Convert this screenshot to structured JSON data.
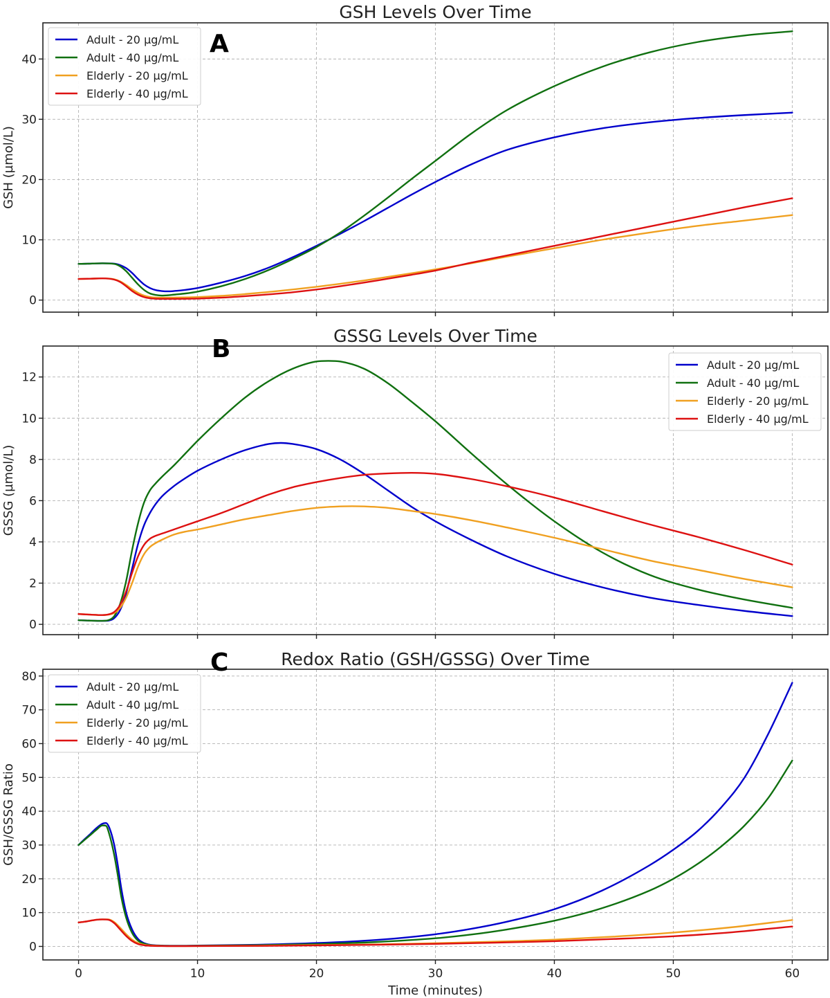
{
  "chart_data": [
    {
      "type": "line",
      "panel_label": "A",
      "title": "GSH Levels Over Time",
      "xlabel": "",
      "ylabel": "GSH (µmol/L)",
      "xlim": [
        -3,
        63
      ],
      "ylim": [
        -2,
        46
      ],
      "xticks": [
        0,
        10,
        20,
        30,
        40,
        50,
        60
      ],
      "yticks": [
        0,
        10,
        20,
        30,
        40
      ],
      "show_xtick_labels": false,
      "grid": true,
      "legend": "top-left",
      "series": [
        {
          "name": "Adult - 20 µg/mL",
          "color": "#0000cc",
          "x": [
            0,
            1,
            2,
            3,
            3.5,
            4,
            4.5,
            5,
            5.5,
            6,
            6.5,
            7,
            7.5,
            8,
            9,
            10,
            12,
            14,
            16,
            18,
            20,
            22,
            24,
            26,
            28,
            30,
            33,
            36,
            40,
            44,
            48,
            52,
            56,
            60
          ],
          "y": [
            6,
            6.05,
            6.1,
            6.05,
            5.8,
            5.3,
            4.5,
            3.5,
            2.6,
            2.0,
            1.65,
            1.5,
            1.45,
            1.5,
            1.7,
            2.0,
            2.9,
            4.0,
            5.4,
            7.1,
            9.0,
            11.0,
            13.1,
            15.3,
            17.5,
            19.6,
            22.5,
            24.9,
            27.0,
            28.5,
            29.5,
            30.2,
            30.7,
            31.1
          ]
        },
        {
          "name": "Adult - 40 µg/mL",
          "color": "#107010",
          "x": [
            0,
            1,
            2,
            3,
            3.5,
            4,
            4.5,
            5,
            5.5,
            6,
            6.5,
            7,
            7.5,
            8,
            9,
            10,
            12,
            14,
            16,
            18,
            20,
            22,
            24,
            26,
            28,
            30,
            33,
            36,
            40,
            44,
            48,
            52,
            56,
            60
          ],
          "y": [
            6,
            6.05,
            6.1,
            6.0,
            5.6,
            4.8,
            3.7,
            2.6,
            1.7,
            1.1,
            0.85,
            0.75,
            0.8,
            0.9,
            1.1,
            1.4,
            2.3,
            3.5,
            5.0,
            6.8,
            8.8,
            11.2,
            14.0,
            17.0,
            20.1,
            23.1,
            27.6,
            31.5,
            35.5,
            38.7,
            41.1,
            42.8,
            43.9,
            44.6
          ]
        },
        {
          "name": "Elderly - 20 µg/mL",
          "color": "#f0a020",
          "x": [
            0,
            1,
            2,
            3,
            3.5,
            4,
            4.5,
            5,
            5.5,
            6,
            6.5,
            7,
            8,
            10,
            12,
            14,
            16,
            18,
            20,
            22,
            24,
            26,
            28,
            30,
            33,
            36,
            40,
            44,
            48,
            52,
            56,
            60
          ],
          "y": [
            3.5,
            3.55,
            3.6,
            3.45,
            3.1,
            2.5,
            1.8,
            1.2,
            0.75,
            0.5,
            0.42,
            0.4,
            0.42,
            0.5,
            0.7,
            1.0,
            1.35,
            1.75,
            2.2,
            2.7,
            3.25,
            3.85,
            4.45,
            5.1,
            6.1,
            7.2,
            8.6,
            10.0,
            11.2,
            12.3,
            13.2,
            14.1
          ]
        },
        {
          "name": "Elderly - 40 µg/mL",
          "color": "#dd1111",
          "x": [
            0,
            1,
            2,
            3,
            3.5,
            4,
            4.5,
            5,
            5.5,
            6,
            6.5,
            7,
            8,
            10,
            12,
            14,
            16,
            18,
            20,
            22,
            24,
            26,
            28,
            30,
            33,
            36,
            40,
            44,
            48,
            52,
            56,
            60
          ],
          "y": [
            3.5,
            3.55,
            3.6,
            3.4,
            3.0,
            2.3,
            1.5,
            0.9,
            0.5,
            0.3,
            0.22,
            0.2,
            0.2,
            0.25,
            0.4,
            0.65,
            0.95,
            1.3,
            1.75,
            2.3,
            2.9,
            3.55,
            4.2,
            4.9,
            6.2,
            7.4,
            9.0,
            10.6,
            12.2,
            13.8,
            15.4,
            16.9
          ]
        }
      ]
    },
    {
      "type": "line",
      "panel_label": "B",
      "title": "GSSG Levels Over Time",
      "xlabel": "",
      "ylabel": "GSSG (µmol/L)",
      "xlim": [
        -3,
        63
      ],
      "ylim": [
        -0.5,
        13.5
      ],
      "xticks": [
        0,
        10,
        20,
        30,
        40,
        50,
        60
      ],
      "yticks": [
        0,
        2,
        4,
        6,
        8,
        10,
        12
      ],
      "show_xtick_labels": false,
      "grid": true,
      "legend": "top-right",
      "series": [
        {
          "name": "Adult - 20 µg/mL",
          "color": "#0000cc",
          "x": [
            0,
            1,
            2,
            2.5,
            3,
            3.5,
            4,
            4.5,
            5,
            5.5,
            6,
            6.5,
            7,
            8,
            9,
            10,
            12,
            14,
            16,
            17,
            18,
            20,
            22,
            24,
            26,
            28,
            30,
            33,
            36,
            40,
            44,
            48,
            52,
            56,
            60
          ],
          "y": [
            0.2,
            0.18,
            0.17,
            0.18,
            0.3,
            0.7,
            1.5,
            2.7,
            3.9,
            4.8,
            5.4,
            5.85,
            6.2,
            6.7,
            7.1,
            7.45,
            8.0,
            8.45,
            8.75,
            8.8,
            8.75,
            8.5,
            8.0,
            7.3,
            6.5,
            5.7,
            5.0,
            4.1,
            3.3,
            2.45,
            1.8,
            1.3,
            0.95,
            0.65,
            0.4
          ]
        },
        {
          "name": "Adult - 40 µg/mL",
          "color": "#107010",
          "x": [
            0,
            1,
            2,
            2.5,
            3,
            3.5,
            4,
            4.5,
            5,
            5.5,
            6,
            6.5,
            7,
            8,
            9,
            10,
            12,
            14,
            16,
            18,
            20,
            21,
            22,
            24,
            26,
            28,
            30,
            33,
            36,
            40,
            44,
            48,
            52,
            56,
            60
          ],
          "y": [
            0.2,
            0.18,
            0.17,
            0.2,
            0.4,
            1.0,
            2.1,
            3.6,
            4.9,
            5.9,
            6.5,
            6.85,
            7.15,
            7.7,
            8.3,
            8.9,
            10.0,
            11.0,
            11.8,
            12.4,
            12.75,
            12.78,
            12.75,
            12.4,
            11.7,
            10.8,
            9.85,
            8.3,
            6.8,
            5.0,
            3.5,
            2.4,
            1.7,
            1.2,
            0.8
          ]
        },
        {
          "name": "Elderly - 20 µg/mL",
          "color": "#f0a020",
          "x": [
            0,
            1,
            2,
            2.5,
            3,
            3.5,
            4,
            4.5,
            5,
            5.5,
            6,
            6.5,
            7,
            8,
            9,
            10,
            12,
            14,
            16,
            18,
            20,
            22,
            23,
            24,
            26,
            28,
            30,
            33,
            36,
            40,
            44,
            48,
            52,
            56,
            60
          ],
          "y": [
            0.5,
            0.47,
            0.45,
            0.47,
            0.55,
            0.8,
            1.3,
            2.0,
            2.8,
            3.4,
            3.75,
            3.95,
            4.1,
            4.35,
            4.5,
            4.6,
            4.85,
            5.1,
            5.3,
            5.5,
            5.65,
            5.72,
            5.73,
            5.72,
            5.65,
            5.5,
            5.35,
            5.05,
            4.7,
            4.2,
            3.65,
            3.1,
            2.65,
            2.2,
            1.8
          ]
        },
        {
          "name": "Elderly - 40 µg/mL",
          "color": "#dd1111",
          "x": [
            0,
            1,
            2,
            2.5,
            3,
            3.5,
            4,
            4.5,
            5,
            5.5,
            6,
            6.5,
            7,
            8,
            9,
            10,
            12,
            14,
            16,
            18,
            20,
            22,
            24,
            26,
            28,
            30,
            33,
            36,
            40,
            44,
            48,
            52,
            56,
            60
          ],
          "y": [
            0.5,
            0.47,
            0.45,
            0.48,
            0.6,
            0.95,
            1.6,
            2.5,
            3.3,
            3.85,
            4.15,
            4.3,
            4.4,
            4.6,
            4.8,
            5.0,
            5.4,
            5.85,
            6.3,
            6.65,
            6.9,
            7.1,
            7.25,
            7.32,
            7.35,
            7.3,
            7.05,
            6.7,
            6.15,
            5.5,
            4.85,
            4.25,
            3.6,
            2.9
          ]
        }
      ]
    },
    {
      "type": "line",
      "panel_label": "C",
      "title": "Redox Ratio (GSH/GSSG) Over Time",
      "xlabel": "Time (minutes)",
      "ylabel": "GSH/GSSG Ratio",
      "xlim": [
        -3,
        63
      ],
      "ylim": [
        -4,
        82
      ],
      "xticks": [
        0,
        10,
        20,
        30,
        40,
        50,
        60
      ],
      "yticks": [
        0,
        10,
        20,
        30,
        40,
        50,
        60,
        70,
        80
      ],
      "show_xtick_labels": true,
      "grid": true,
      "legend": "top-left",
      "series": [
        {
          "name": "Adult - 20 µg/mL",
          "color": "#0000cc",
          "x": [
            0,
            0.5,
            1,
            1.5,
            2,
            2.3,
            2.6,
            3,
            3.3,
            3.6,
            4,
            4.5,
            5,
            5.5,
            6,
            7,
            8,
            10,
            15,
            20,
            25,
            30,
            33,
            36,
            40,
            44,
            48,
            50,
            52,
            54,
            56,
            58,
            60
          ],
          "y": [
            30,
            31.7,
            33.3,
            35,
            36.3,
            36.5,
            35,
            30,
            24,
            17,
            10,
            5,
            2.2,
            1.0,
            0.5,
            0.25,
            0.2,
            0.25,
            0.5,
            1.0,
            1.9,
            3.6,
            5.2,
            7.3,
            11,
            16.5,
            24,
            28.6,
            34,
            41,
            50,
            63,
            78
          ]
        },
        {
          "name": "Adult - 40 µg/mL",
          "color": "#107010",
          "x": [
            0,
            0.5,
            1,
            1.5,
            2,
            2.3,
            2.6,
            3,
            3.3,
            3.6,
            4,
            4.5,
            5,
            5.5,
            6,
            7,
            8,
            10,
            15,
            20,
            25,
            30,
            33,
            36,
            40,
            44,
            48,
            50,
            52,
            54,
            56,
            58,
            60
          ],
          "y": [
            30,
            31.5,
            33,
            34.5,
            35.8,
            35.7,
            33,
            27,
            21,
            14.5,
            8.5,
            4,
            1.7,
            0.8,
            0.4,
            0.2,
            0.15,
            0.2,
            0.35,
            0.7,
            1.3,
            2.4,
            3.5,
            5.0,
            7.6,
            11.3,
            16.5,
            20,
            24.3,
            29.5,
            35.8,
            44,
            55
          ]
        },
        {
          "name": "Elderly - 20 µg/mL",
          "color": "#f0a020",
          "x": [
            0,
            0.5,
            1,
            1.5,
            2,
            2.5,
            3,
            3.5,
            4,
            4.5,
            5,
            5.5,
            6,
            7,
            8,
            10,
            15,
            20,
            25,
            30,
            35,
            40,
            45,
            50,
            55,
            60
          ],
          "y": [
            7.1,
            7.3,
            7.6,
            7.9,
            8.0,
            8.0,
            7.2,
            5.5,
            3.6,
            2.0,
            1.0,
            0.5,
            0.3,
            0.15,
            0.1,
            0.12,
            0.2,
            0.4,
            0.6,
            0.95,
            1.4,
            2.0,
            2.9,
            4.1,
            5.7,
            7.8
          ]
        },
        {
          "name": "Elderly - 40 µg/mL",
          "color": "#dd1111",
          "x": [
            0,
            0.5,
            1,
            1.5,
            2,
            2.5,
            3,
            3.5,
            4,
            4.5,
            5,
            5.5,
            6,
            7,
            8,
            10,
            15,
            20,
            25,
            30,
            35,
            40,
            45,
            50,
            55,
            60
          ],
          "y": [
            7.1,
            7.3,
            7.6,
            7.9,
            8.0,
            7.9,
            6.9,
            5.0,
            3.1,
            1.6,
            0.7,
            0.35,
            0.2,
            0.1,
            0.08,
            0.1,
            0.15,
            0.3,
            0.5,
            0.75,
            1.1,
            1.55,
            2.2,
            3.0,
            4.2,
            5.9
          ]
        }
      ]
    }
  ]
}
